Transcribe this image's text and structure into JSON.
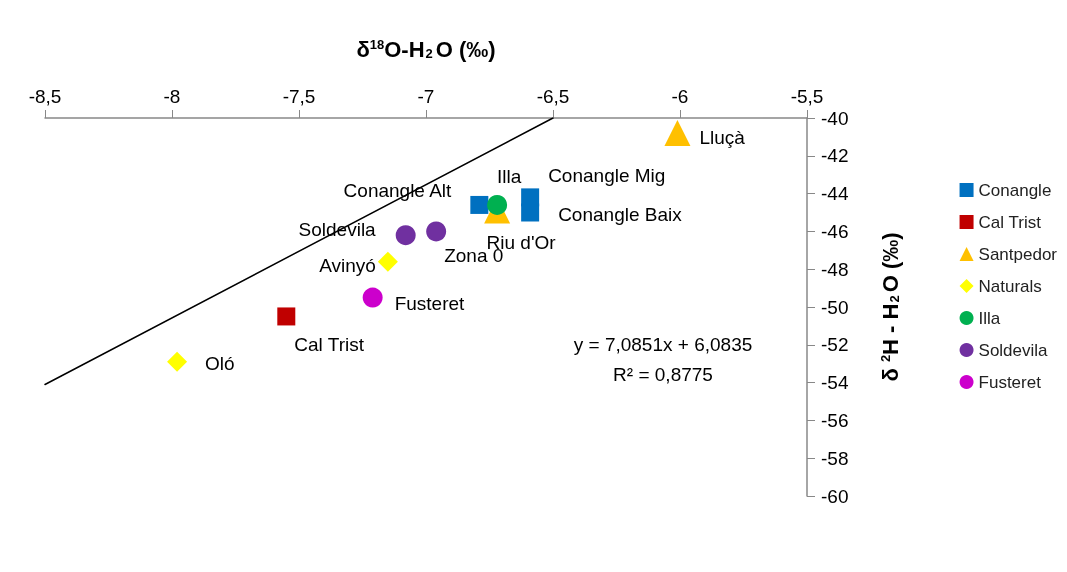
{
  "chart_data": {
    "type": "scatter",
    "xlabel": "δ$^{18}$O-H$_{2}$O (‰)",
    "ylabel": "δ $^{2}$H - H$_{2}$O (‰)",
    "xlim": [
      -8.5,
      -5.5
    ],
    "xticks": [
      {
        "value": -8.5,
        "label": "-8,5"
      },
      -8,
      {
        "value": -7.5,
        "label": "-7,5"
      },
      -7,
      {
        "value": -6.5,
        "label": "-6,5"
      },
      -6,
      {
        "value": -5.5,
        "label": "-5,5"
      }
    ],
    "ylim": [
      -60,
      -40
    ],
    "yticks": [
      -60,
      -58,
      -56,
      -54,
      -52,
      -50,
      -48,
      -46,
      -44,
      -42,
      -40
    ],
    "grid": false,
    "legend": "right",
    "series": [
      {
        "name": "Conangle",
        "color": "#0070c0",
        "marker": "square",
        "x": [
          -6.79,
          -6.59,
          -6.59
        ],
        "values": [
          -44.6,
          -44.2,
          -45.0
        ]
      },
      {
        "name": "Cal Trist",
        "color": "#c00000",
        "marker": "square",
        "x": [
          -7.55
        ],
        "values": [
          -50.5
        ]
      },
      {
        "name": "Santpedor",
        "color": "#ffc000",
        "marker": "triangle",
        "x": [
          -6.01,
          -6.72
        ],
        "values": [
          -40.8,
          -44.9
        ]
      },
      {
        "name": "Naturals",
        "color": "#ffff00",
        "marker": "diamond",
        "x": [
          -7.15,
          -7.98
        ],
        "values": [
          -47.6,
          -52.9
        ]
      },
      {
        "name": "Illa",
        "color": "#00b050",
        "marker": "circle",
        "x": [
          -6.72
        ],
        "values": [
          -44.6
        ]
      },
      {
        "name": "Soldevila",
        "color": "#7030a0",
        "marker": "circle",
        "x": [
          -7.08,
          -6.96
        ],
        "values": [
          -46.2,
          -46.0
        ]
      },
      {
        "name": "Fusteret",
        "color": "#cc00cc",
        "marker": "circle",
        "x": [
          -7.21
        ],
        "values": [
          -49.5
        ]
      },
      {
        "type": "line",
        "color": "#000000",
        "marker": "none",
        "x": [
          -8.5,
          -6.5
        ],
        "values": [
          -54.1,
          -40.0
        ]
      }
    ],
    "annotations": [
      {
        "text": "Lluçà",
        "x": -6.01,
        "y": -40.8
      },
      {
        "text": "Conangle Mig",
        "x": -6.59,
        "y": -44.2
      },
      {
        "text": "Conangle Baix",
        "x": -6.59,
        "y": -45.0
      },
      {
        "text": "Conangle Alt",
        "x": -6.79,
        "y": -44.6
      },
      {
        "text": "Illa",
        "x": -6.72,
        "y": -44.6
      },
      {
        "text": "Riu d'Or",
        "x": -6.72,
        "y": -44.9
      },
      {
        "text": "Soldevila",
        "x": -7.08,
        "y": -46.2
      },
      {
        "text": "Zona 0",
        "x": -6.96,
        "y": -46.0
      },
      {
        "text": "Avinyó",
        "x": -7.15,
        "y": -47.6
      },
      {
        "text": "Fusteret",
        "x": -7.21,
        "y": -49.5
      },
      {
        "text": "Cal Trist",
        "x": -7.55,
        "y": -50.5
      },
      {
        "text": "Oló",
        "x": -7.98,
        "y": -52.9
      },
      "y = 7,0851x + 6,0835",
      "R² = 0,8775"
    ]
  }
}
